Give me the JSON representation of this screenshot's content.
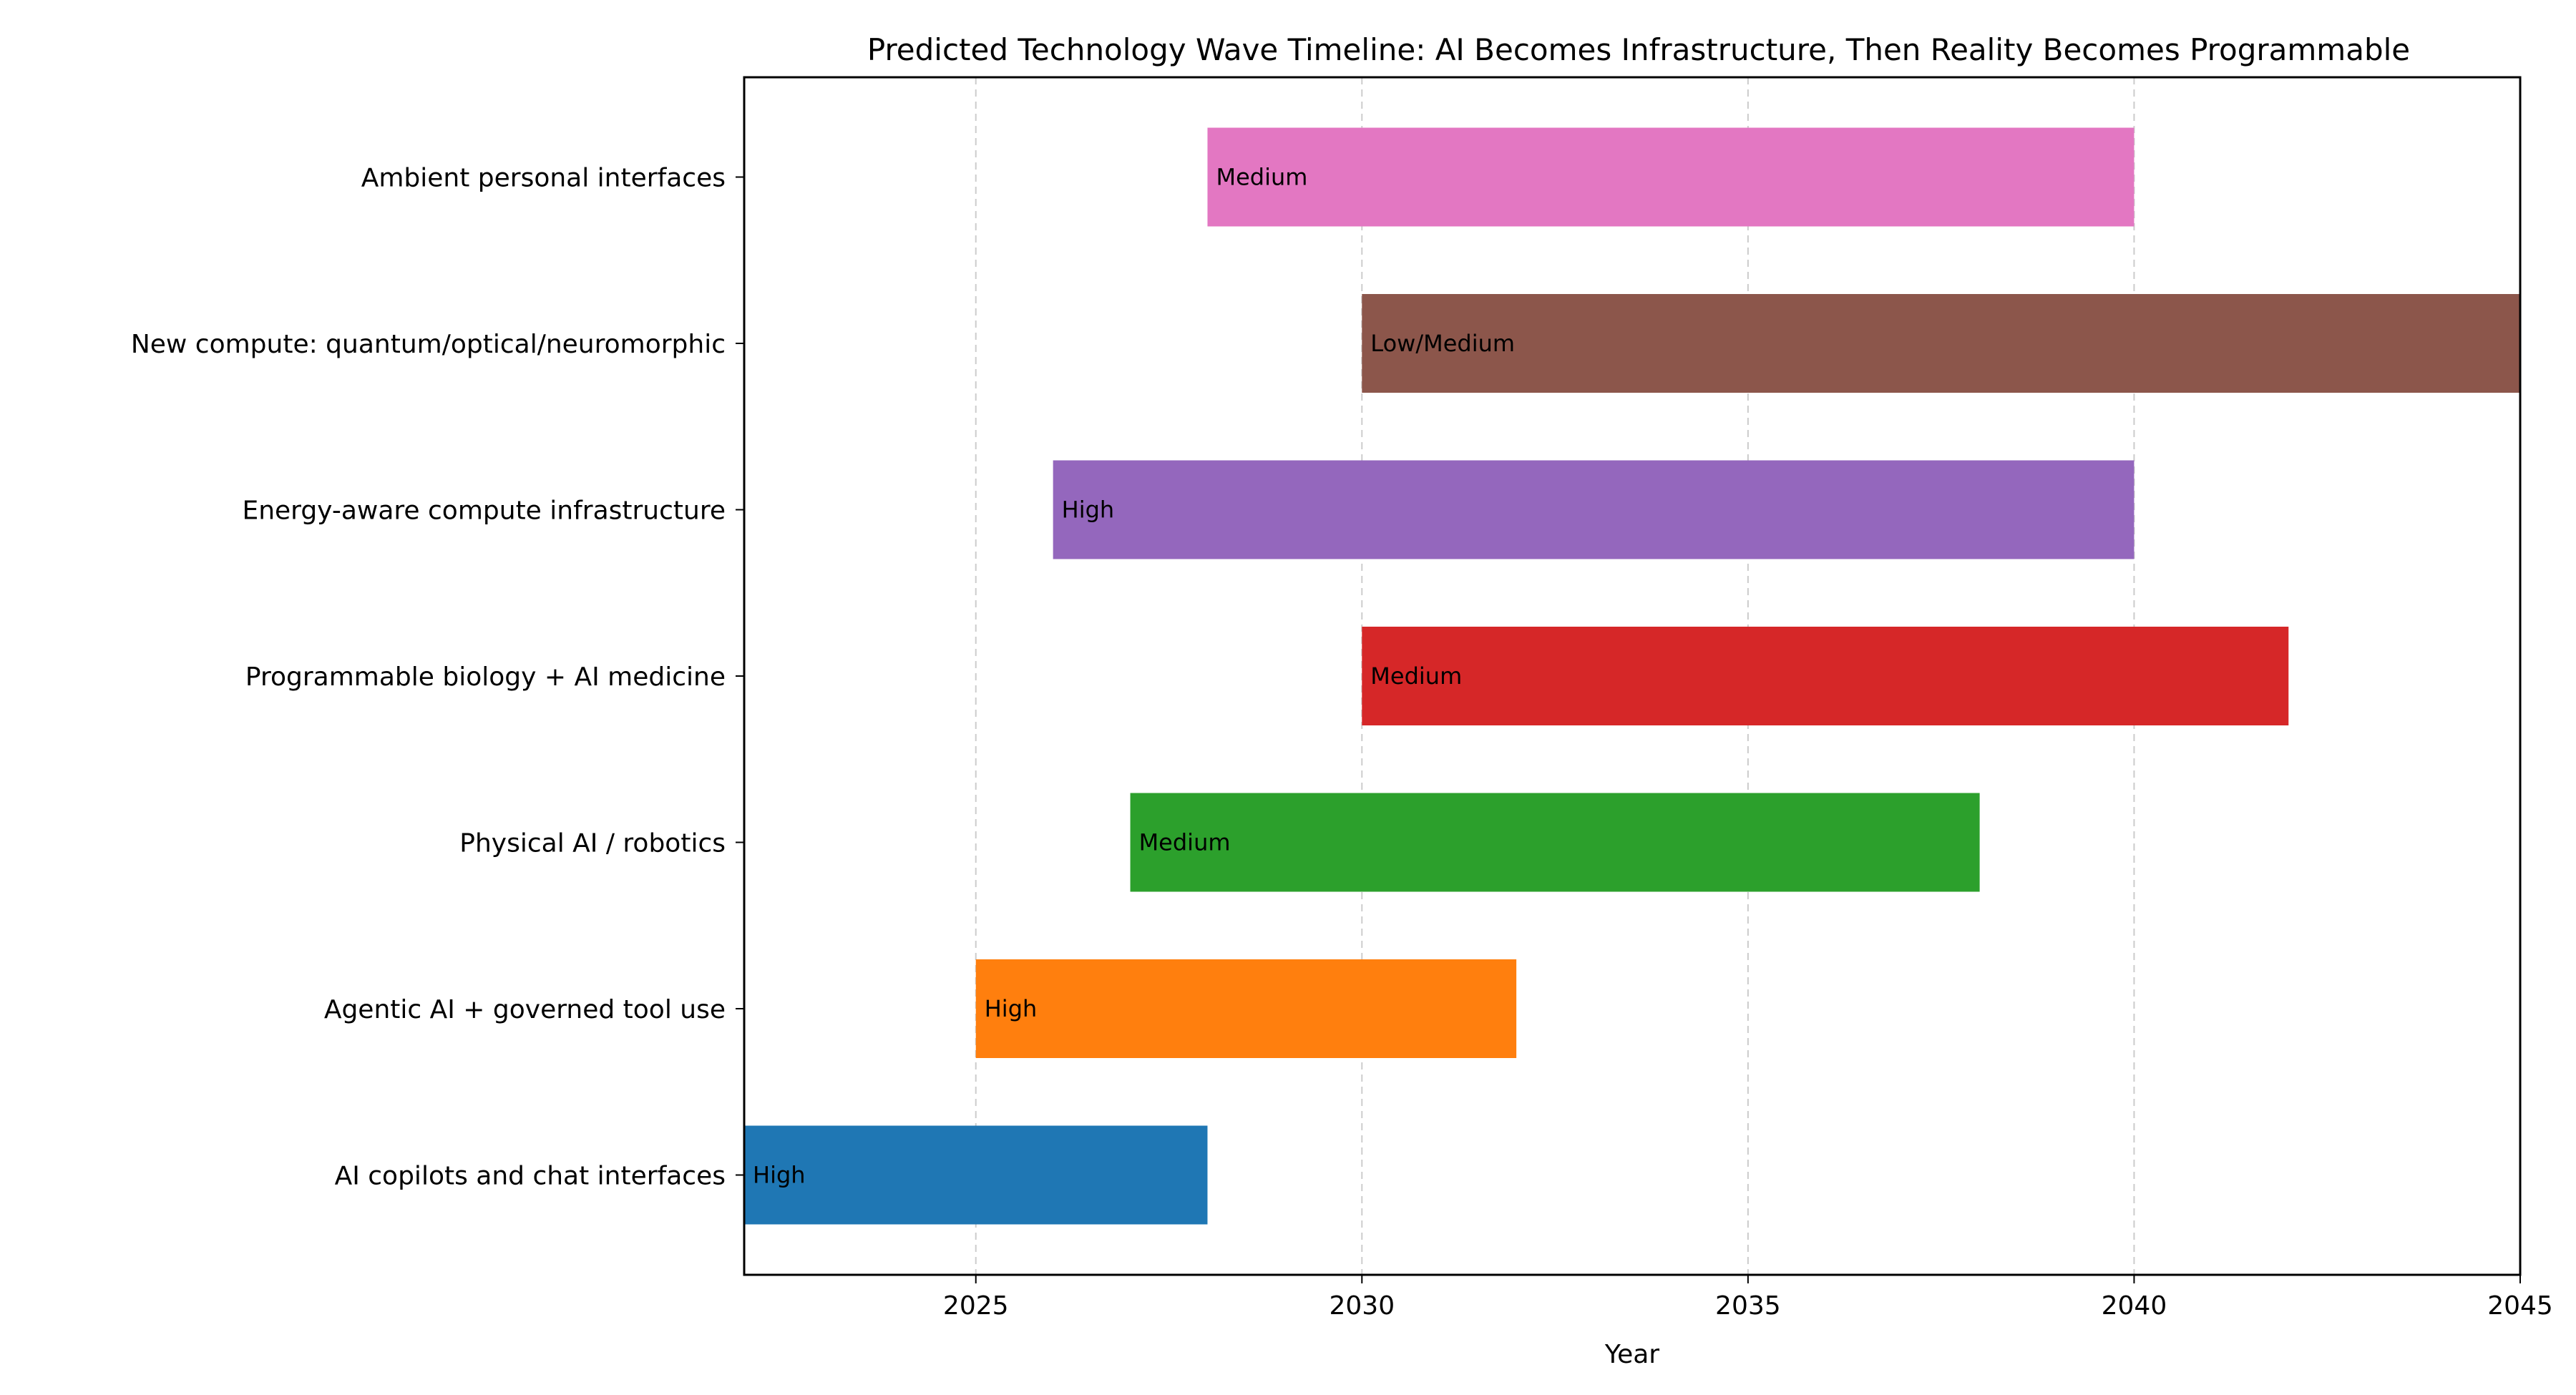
{
  "chart_data": {
    "type": "bar",
    "orientation": "horizontal",
    "title": "Predicted Technology Wave Timeline: AI Becomes Infrastructure, Then Reality Becomes Programmable",
    "xlabel": "Year",
    "ylabel": "",
    "xlim": [
      2022,
      2045
    ],
    "xticks": [
      2025,
      2030,
      2035,
      2040,
      2045
    ],
    "grid": "x, dashed",
    "legend": "none",
    "categories": [
      "AI copilots and chat interfaces",
      "Agentic AI + governed tool use",
      "Physical AI / robotics",
      "Programmable biology + AI medicine",
      "Energy-aware compute infrastructure",
      "New compute: quantum/optical/neuromorphic",
      "Ambient personal interfaces"
    ],
    "bars": [
      {
        "category": "AI copilots and chat interfaces",
        "start": 2022,
        "end": 2028,
        "label": "High",
        "color": "#1f77b4"
      },
      {
        "category": "Agentic AI + governed tool use",
        "start": 2025,
        "end": 2032,
        "label": "High",
        "color": "#ff7f0e"
      },
      {
        "category": "Physical AI / robotics",
        "start": 2027,
        "end": 2038,
        "label": "Medium",
        "color": "#2ca02c"
      },
      {
        "category": "Programmable biology + AI medicine",
        "start": 2030,
        "end": 2042,
        "label": "Medium",
        "color": "#d62728"
      },
      {
        "category": "Energy-aware compute infrastructure",
        "start": 2026,
        "end": 2040,
        "label": "High",
        "color": "#9467bd"
      },
      {
        "category": "New compute: quantum/optical/neuromorphic",
        "start": 2030,
        "end": 2045,
        "label": "Low/Medium",
        "color": "#8c564b"
      },
      {
        "category": "Ambient personal interfaces",
        "start": 2028,
        "end": 2040,
        "label": "Medium",
        "color": "#e377c2"
      }
    ]
  }
}
